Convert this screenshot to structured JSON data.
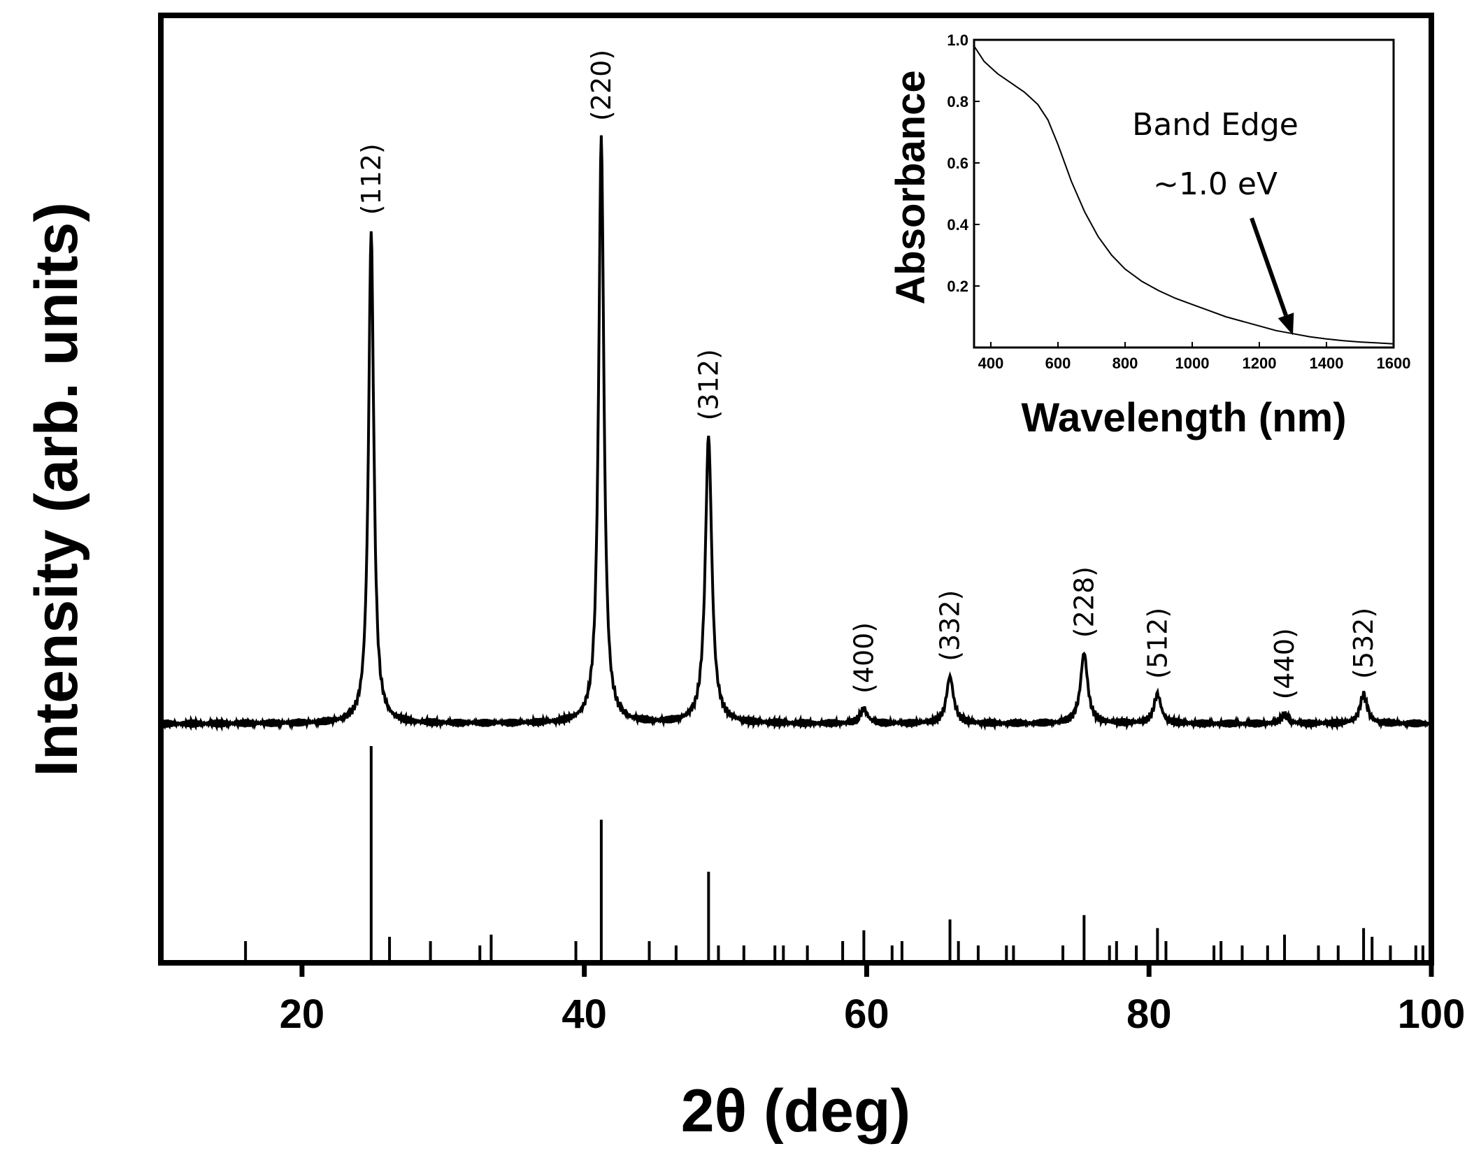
{
  "chart_data": [
    {
      "type": "line",
      "xlabel": "2θ (deg)",
      "ylabel": "Intensity (arb. units)",
      "xlim": [
        10,
        100
      ],
      "xticks": [
        "20",
        "40",
        "60",
        "80",
        "100"
      ],
      "xtick_values": [
        20,
        40,
        60,
        80,
        100
      ],
      "ylim": [
        0,
        1.1
      ],
      "yticks": [],
      "grid": false,
      "series": [
        {
          "peaks": [
            {
              "x": 24.9,
              "y": 0.84,
              "width": 0.45,
              "label": "(112)"
            },
            {
              "x": 41.2,
              "y": 1.0,
              "width": 0.45,
              "label": "(220)"
            },
            {
              "x": 48.8,
              "y": 0.49,
              "width": 0.55,
              "label": "(312)"
            },
            {
              "x": 59.8,
              "y": 0.025,
              "width": 0.6,
              "label": "(400)"
            },
            {
              "x": 65.9,
              "y": 0.08,
              "width": 0.6,
              "label": "(332)"
            },
            {
              "x": 75.4,
              "y": 0.12,
              "width": 0.6,
              "label": "(228)"
            },
            {
              "x": 80.6,
              "y": 0.05,
              "width": 0.6,
              "label": "(512)"
            },
            {
              "x": 89.6,
              "y": 0.015,
              "width": 0.6,
              "label": "(440)"
            },
            {
              "x": 95.2,
              "y": 0.05,
              "width": 0.6,
              "label": "(532)"
            }
          ]
        }
      ],
      "reference_sticks": [
        {
          "x": 16.0,
          "h": 0.1
        },
        {
          "x": 24.9,
          "h": 1.0
        },
        {
          "x": 26.2,
          "h": 0.12
        },
        {
          "x": 29.1,
          "h": 0.1
        },
        {
          "x": 32.6,
          "h": 0.08
        },
        {
          "x": 33.4,
          "h": 0.13
        },
        {
          "x": 39.4,
          "h": 0.1
        },
        {
          "x": 41.2,
          "h": 0.66
        },
        {
          "x": 44.6,
          "h": 0.1
        },
        {
          "x": 46.5,
          "h": 0.08
        },
        {
          "x": 48.8,
          "h": 0.42
        },
        {
          "x": 49.5,
          "h": 0.08
        },
        {
          "x": 51.3,
          "h": 0.08
        },
        {
          "x": 53.5,
          "h": 0.08
        },
        {
          "x": 54.1,
          "h": 0.08
        },
        {
          "x": 55.8,
          "h": 0.08
        },
        {
          "x": 58.3,
          "h": 0.1
        },
        {
          "x": 59.8,
          "h": 0.15
        },
        {
          "x": 61.8,
          "h": 0.08
        },
        {
          "x": 62.5,
          "h": 0.1
        },
        {
          "x": 65.9,
          "h": 0.2
        },
        {
          "x": 66.5,
          "h": 0.1
        },
        {
          "x": 67.9,
          "h": 0.08
        },
        {
          "x": 69.9,
          "h": 0.08
        },
        {
          "x": 70.4,
          "h": 0.08
        },
        {
          "x": 73.9,
          "h": 0.08
        },
        {
          "x": 75.4,
          "h": 0.22
        },
        {
          "x": 77.2,
          "h": 0.08
        },
        {
          "x": 77.7,
          "h": 0.1
        },
        {
          "x": 79.1,
          "h": 0.08
        },
        {
          "x": 80.6,
          "h": 0.16
        },
        {
          "x": 81.2,
          "h": 0.1
        },
        {
          "x": 84.6,
          "h": 0.08
        },
        {
          "x": 85.1,
          "h": 0.1
        },
        {
          "x": 86.6,
          "h": 0.08
        },
        {
          "x": 88.4,
          "h": 0.08
        },
        {
          "x": 89.6,
          "h": 0.13
        },
        {
          "x": 92.0,
          "h": 0.08
        },
        {
          "x": 93.4,
          "h": 0.08
        },
        {
          "x": 95.2,
          "h": 0.16
        },
        {
          "x": 95.8,
          "h": 0.12
        },
        {
          "x": 97.1,
          "h": 0.08
        },
        {
          "x": 98.9,
          "h": 0.08
        },
        {
          "x": 99.4,
          "h": 0.08
        }
      ]
    },
    {
      "type": "line",
      "xlabel": "Wavelength (nm)",
      "ylabel": "Absorbance",
      "xlim": [
        350,
        1600
      ],
      "xticks": [
        "400",
        "600",
        "800",
        "1000",
        "1200",
        "1400",
        "1600"
      ],
      "xtick_values": [
        400,
        600,
        800,
        1000,
        1200,
        1400,
        1600
      ],
      "ylim": [
        0,
        1.0
      ],
      "yticks": [
        "0.2",
        "0.4",
        "0.6",
        "0.8",
        "1.0"
      ],
      "ytick_values": [
        0.2,
        0.4,
        0.6,
        0.8,
        1.0
      ],
      "grid": false,
      "series": [
        {
          "x": [
            350,
            380,
            420,
            460,
            500,
            540,
            570,
            600,
            640,
            680,
            720,
            760,
            800,
            850,
            900,
            950,
            1000,
            1050,
            1100,
            1150,
            1200,
            1250,
            1300,
            1350,
            1400,
            1450,
            1500,
            1550,
            1600
          ],
          "y": [
            0.98,
            0.93,
            0.89,
            0.86,
            0.83,
            0.79,
            0.74,
            0.66,
            0.54,
            0.44,
            0.36,
            0.3,
            0.255,
            0.215,
            0.185,
            0.16,
            0.14,
            0.12,
            0.1,
            0.085,
            0.07,
            0.055,
            0.045,
            0.035,
            0.028,
            0.022,
            0.018,
            0.015,
            0.012
          ]
        }
      ],
      "annotation": {
        "line1": "Band Edge",
        "line2": "~1.0 eV",
        "arrow_target": {
          "x": 1300,
          "y": 0.04
        }
      }
    }
  ]
}
